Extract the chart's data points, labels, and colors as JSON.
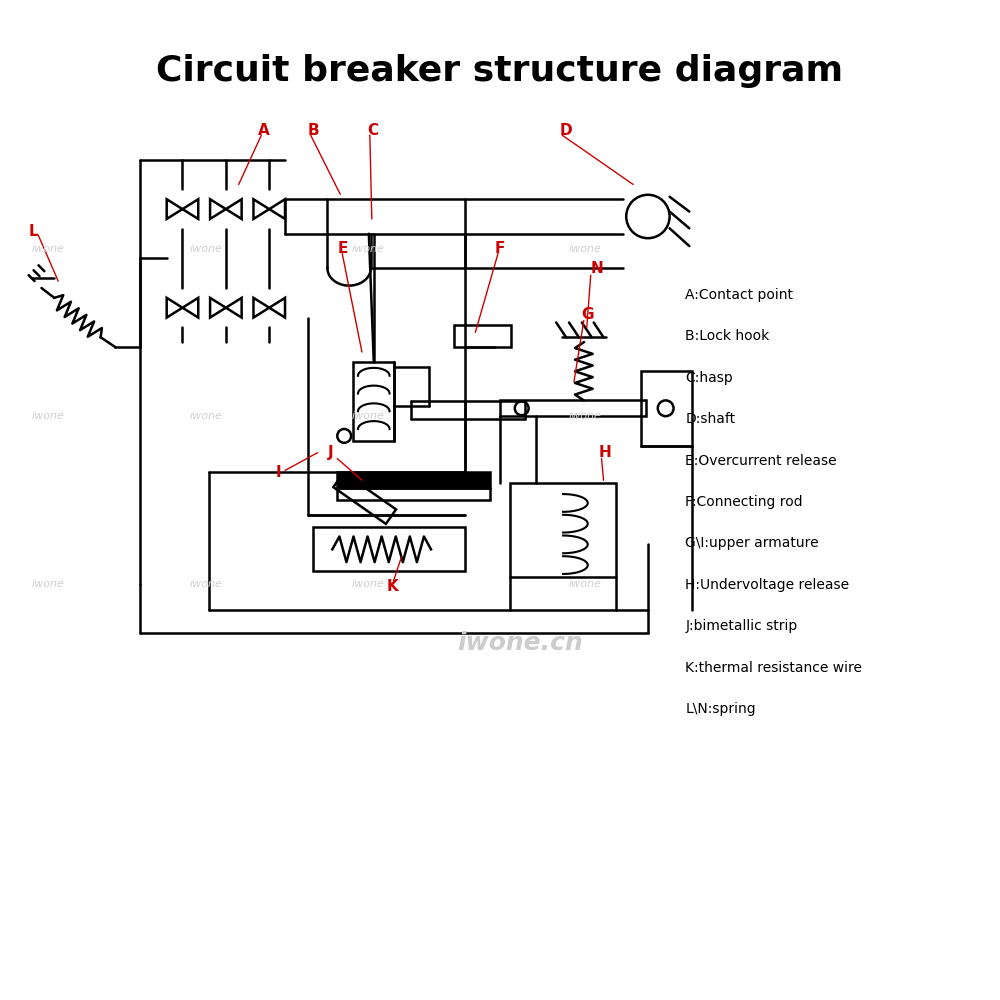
{
  "title": "Circuit breaker structure diagram",
  "bg_color": "#ffffff",
  "line_color": "#000000",
  "label_color": "#cc0000",
  "watermark_text": "iwone",
  "legend_items": [
    "A:Contact point",
    "B:Lock hook",
    "C:hasp",
    "D:shaft",
    "E:Overcurrent release",
    "F:Connecting rod",
    "G\\I:upper armature",
    "H:Undervoltage release",
    "J:bimetallic strip",
    "K:thermal resistance wire",
    "L\\N:spring"
  ]
}
